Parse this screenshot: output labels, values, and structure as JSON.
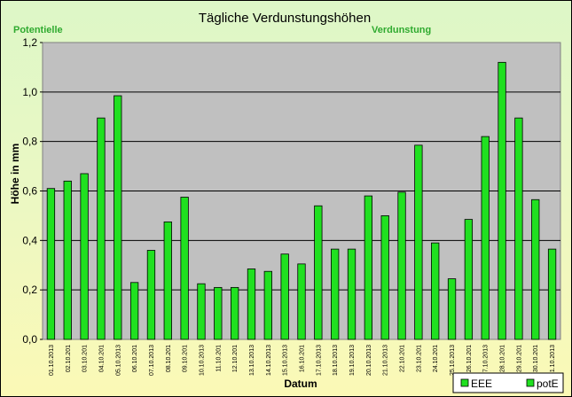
{
  "chart_data": {
    "type": "bar",
    "title": "Tägliche Verdunstungshöhen",
    "xlabel": "Datum",
    "ylabel": "Höhe in mm",
    "ylim": [
      0,
      1.2
    ],
    "ytick_step": 0.2,
    "ytick_labels": [
      "0,0",
      "0,2",
      "0,4",
      "0,6",
      "0,8",
      "1,0",
      "1,2"
    ],
    "grid": true,
    "legend_position": "bottom-right",
    "annotations": [
      "Potentielle",
      "Verdunstung"
    ],
    "categories": [
      "01.10.2013",
      "02.10.201",
      "03.10.201",
      "04.10.201",
      "05.10.2013",
      "06.10.201",
      "07.10.2013",
      "08.10.201",
      "09.10.201",
      "10.10.2013",
      "11.10.201",
      "12.10.201",
      "13.10.2013",
      "14.10.2013",
      "15.10.2013",
      "16.10.201",
      "17.10.2013",
      "18.10.2013",
      "19.10.2013",
      "20.10.2013",
      "21.10.2013",
      "22.10.201",
      "23.10.201",
      "24.10.201",
      "25.10.2013",
      "26.10.201",
      "27.10.2013",
      "28.10.201",
      "29.10.201",
      "30.10.201",
      "31.10.2013"
    ],
    "series": [
      {
        "name": "potE",
        "color": "#20e020",
        "values": [
          0.61,
          0.64,
          0.67,
          0.895,
          0.985,
          0.23,
          0.36,
          0.475,
          0.575,
          0.225,
          0.21,
          0.21,
          0.285,
          0.275,
          0.345,
          0.305,
          0.54,
          0.365,
          0.365,
          0.58,
          0.5,
          0.595,
          0.785,
          0.39,
          0.245,
          0.485,
          0.82,
          1.12,
          0.895,
          0.565,
          0.365
        ]
      }
    ],
    "legend": [
      {
        "label": "EEE",
        "color": "#20e020"
      },
      {
        "label": "potE",
        "color": "#20e020"
      }
    ],
    "plot_background": "#c0c0c0",
    "bar_color": "#20e020"
  }
}
